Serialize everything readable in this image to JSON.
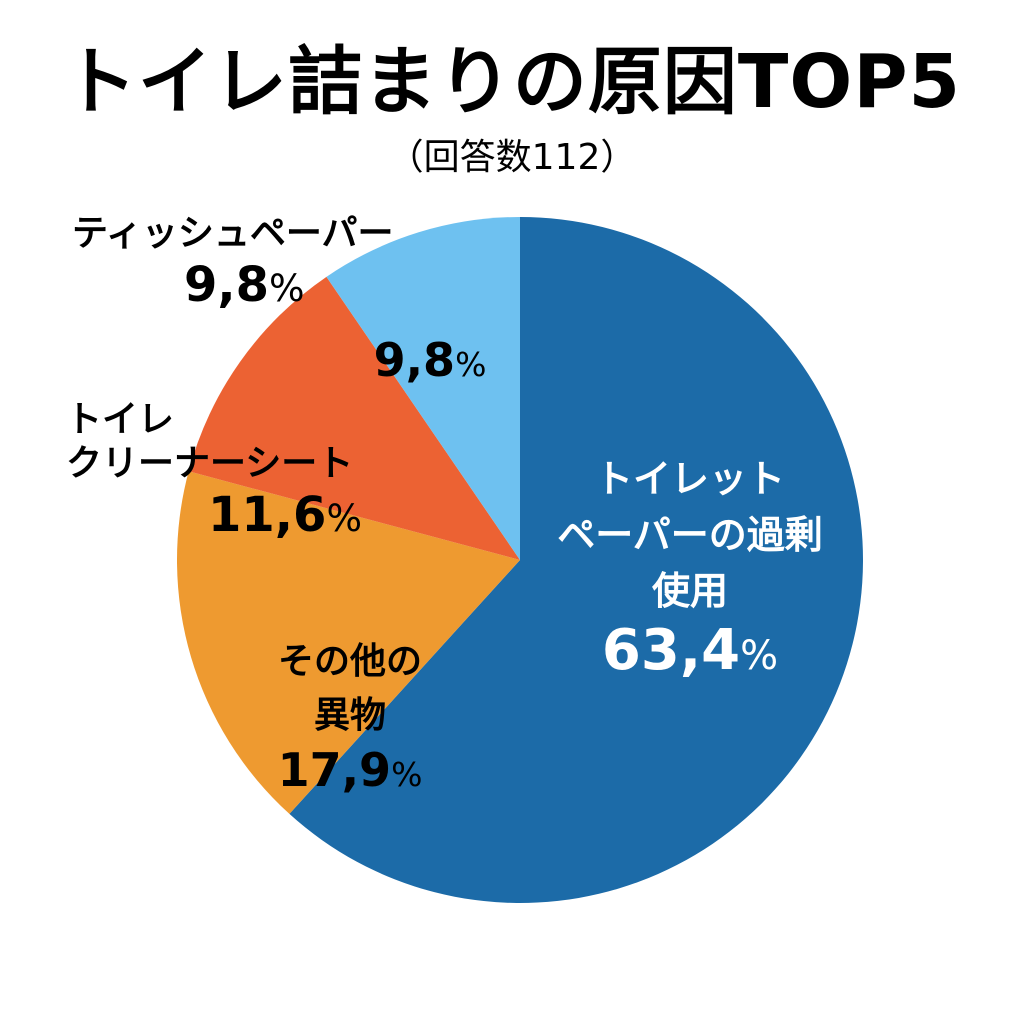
{
  "chart_data": {
    "type": "pie",
    "title": "トイレ詰まりの原因TOP5",
    "subtitle": "（回答数112）",
    "slices": [
      {
        "lines": [
          "トイレット",
          "ペーパーの過剰",
          "使用"
        ],
        "label": "トイレットペーパーの過剰使用",
        "value": 63.4,
        "value_label": "63,4",
        "unit": "%",
        "color": "#1C6BA8",
        "text_color": "#FFFFFF"
      },
      {
        "lines": [
          "その他の",
          "異物"
        ],
        "label": "その他の異物",
        "value": 17.9,
        "value_label": "17,9",
        "unit": "%",
        "color": "#EE9A30",
        "text_color": "#000000"
      },
      {
        "lines": [
          "トイレ",
          "クリーナーシート"
        ],
        "label": "トイレクリーナーシート",
        "value": 11.6,
        "value_label": "11,6",
        "unit": "%",
        "color": "#EC6233",
        "text_color": "#000000"
      },
      {
        "lines": [],
        "label": "ティッシュペーパー",
        "value": 9.8,
        "value_label": "9,8",
        "unit": "%",
        "color": "#6EC1F0",
        "text_color": "#000000"
      }
    ]
  },
  "outer_labels": {
    "cleaner_sheet": {
      "line1": "トイレ",
      "line2": "クリーナーシート",
      "value": "11,6",
      "unit": "%"
    },
    "tissue": {
      "line1": "ティッシュペーパー",
      "value": "9,8",
      "unit": "%"
    }
  }
}
